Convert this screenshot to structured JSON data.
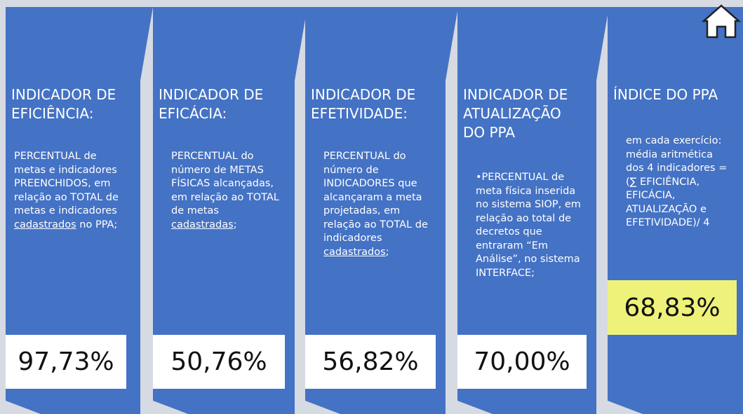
{
  "panels": [
    {
      "title": "INDICADOR DE EFICIÊNCIA:",
      "description": [
        {
          "text": "PERCENTUAL de metas e indicadores PREENCHIDOS, em relação ao TOTAL de metas e indicadores "
        },
        {
          "text": "cadastrados",
          "underline": true
        },
        {
          "text": " no PPA;"
        }
      ],
      "value": "97,73%"
    },
    {
      "title": "INDICADOR DE EFICÁCIA:",
      "description": [
        {
          "text": "PERCENTUAL do número de METAS FÍSICAS alcançadas, em relação ao TOTAL de metas "
        },
        {
          "text": "cadastradas",
          "underline": true
        },
        {
          "text": ";"
        }
      ],
      "value": "50,76%"
    },
    {
      "title": "INDICADOR DE EFETIVIDADE:",
      "description": [
        {
          "text": "PERCENTUAL do número de INDICADORES que alcançaram a meta projetadas, em relação ao TOTAL de indicadores "
        },
        {
          "text": "cadastrados",
          "underline": true
        },
        {
          "text": ";"
        }
      ],
      "value": "56,82%"
    },
    {
      "title": "INDICADOR DE ATUALIZAÇÃO DO PPA",
      "description": [
        {
          "text": "•PERCENTUAL de meta física inserida no sistema SIOP, em relação ao total de decretos que entraram “Em Análise”, no sistema INTERFACE;"
        }
      ],
      "value": "70,00%"
    },
    {
      "title": "ÍNDICE DO PPA",
      "description": [
        {
          "text": "em cada exercício: média aritmética dos 4 indicadores = (∑ EFICIÊNCIA, EFICÁCIA, ATUALIZAÇÃO e EFETIVIDADE)/ 4"
        }
      ],
      "value": "68,83%",
      "highlight": true
    }
  ]
}
